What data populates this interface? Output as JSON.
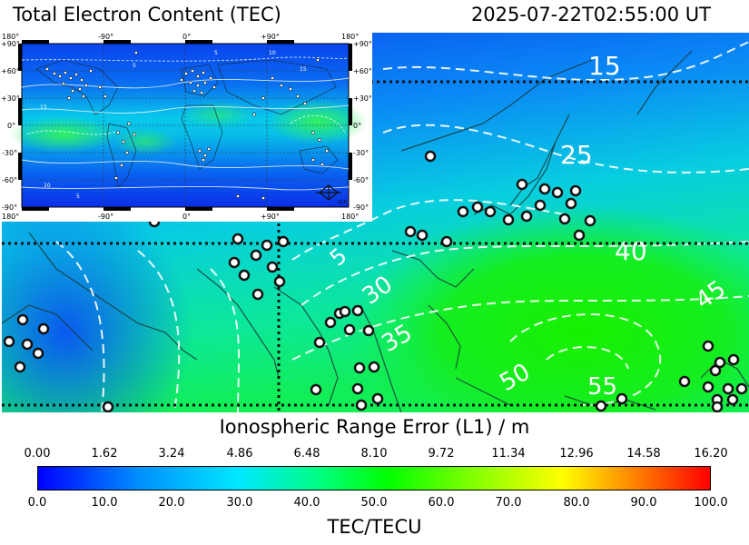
{
  "header": {
    "title": "Total Electron Content (TEC)",
    "timestamp": "2025-07-22T02:55:00 UT"
  },
  "map": {
    "contour_labels": [
      "15",
      "25",
      "5",
      "40",
      "30",
      "35",
      "45",
      "50",
      "55"
    ]
  },
  "inset": {
    "top_ticks": [
      "180°",
      "-90°",
      "0°",
      "+90°",
      "180°"
    ],
    "bottom_ticks": [
      "180°",
      "-90°",
      "0°",
      "+90°",
      "180°"
    ],
    "left_ticks": [
      "+90°",
      "+60°",
      "+30°",
      "0°",
      "-30°",
      "-60°",
      "-90°"
    ],
    "right_ticks": [
      "+90°",
      "+60°",
      "+30°",
      "0°",
      "-30°",
      "-60°",
      "-90°"
    ],
    "contour_labels": [
      "10",
      "15",
      "5",
      "10",
      "5",
      "15",
      "5"
    ],
    "logo_text": "DLR"
  },
  "colorbar": {
    "top_title": "Ionospheric Range Error (L1) / m",
    "top_ticks": [
      "0.00",
      "1.62",
      "3.24",
      "4.86",
      "6.48",
      "8.10",
      "9.72",
      "11.34",
      "12.96",
      "14.58",
      "16.20"
    ],
    "bottom_ticks": [
      "0.0",
      "10.0",
      "20.0",
      "30.0",
      "40.0",
      "50.0",
      "60.0",
      "70.0",
      "80.0",
      "90.0",
      "100.0"
    ],
    "unit_label": "TEC/TECU"
  }
}
